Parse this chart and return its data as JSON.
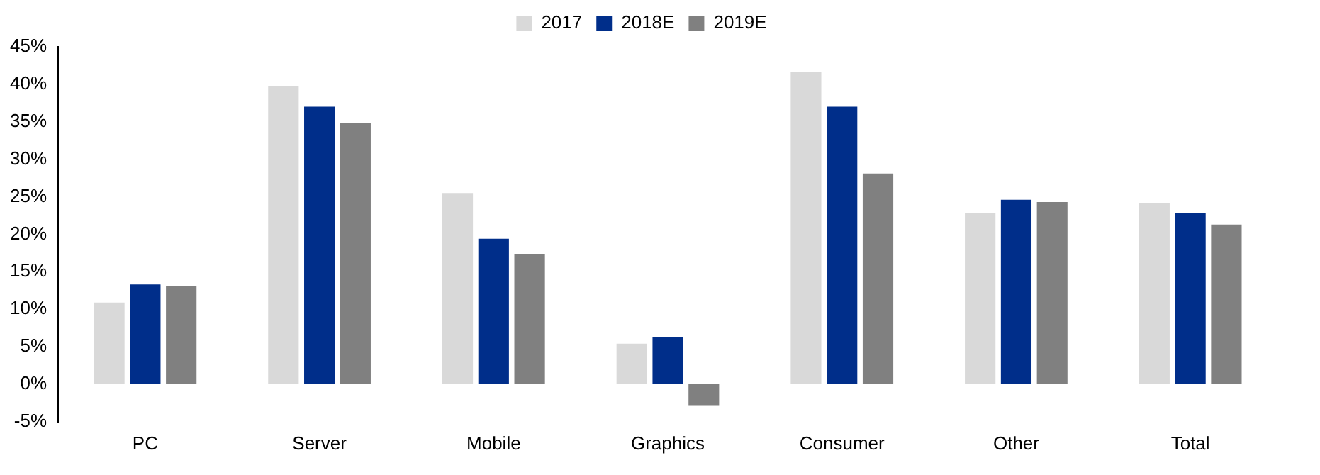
{
  "chart_data": {
    "type": "bar",
    "categories": [
      "PC",
      "Server",
      "Mobile",
      "Graphics",
      "Consumer",
      "Other",
      "Total"
    ],
    "series": [
      {
        "name": "2017",
        "color": "#d9d9d9",
        "values": [
          10.9,
          39.8,
          25.5,
          5.4,
          41.7,
          22.8,
          24.1
        ]
      },
      {
        "name": "2018E",
        "color": "#002e8a",
        "values": [
          13.3,
          37.0,
          19.4,
          6.3,
          37.0,
          24.6,
          22.8
        ]
      },
      {
        "name": "2019E",
        "color": "#808080",
        "values": [
          13.1,
          34.8,
          17.4,
          -2.8,
          28.1,
          24.3,
          21.3
        ]
      }
    ],
    "ylim": [
      -5,
      45
    ],
    "yticks": [
      {
        "value": -5,
        "label": "-5%"
      },
      {
        "value": 0,
        "label": "0%"
      },
      {
        "value": 5,
        "label": "5%"
      },
      {
        "value": 10,
        "label": "10%"
      },
      {
        "value": 15,
        "label": "15%"
      },
      {
        "value": 20,
        "label": "20%"
      },
      {
        "value": 25,
        "label": "25%"
      },
      {
        "value": 30,
        "label": "30%"
      },
      {
        "value": 35,
        "label": "35%"
      },
      {
        "value": 40,
        "label": "40%"
      },
      {
        "value": 45,
        "label": "45%"
      }
    ],
    "grid": false,
    "legend": "top"
  }
}
